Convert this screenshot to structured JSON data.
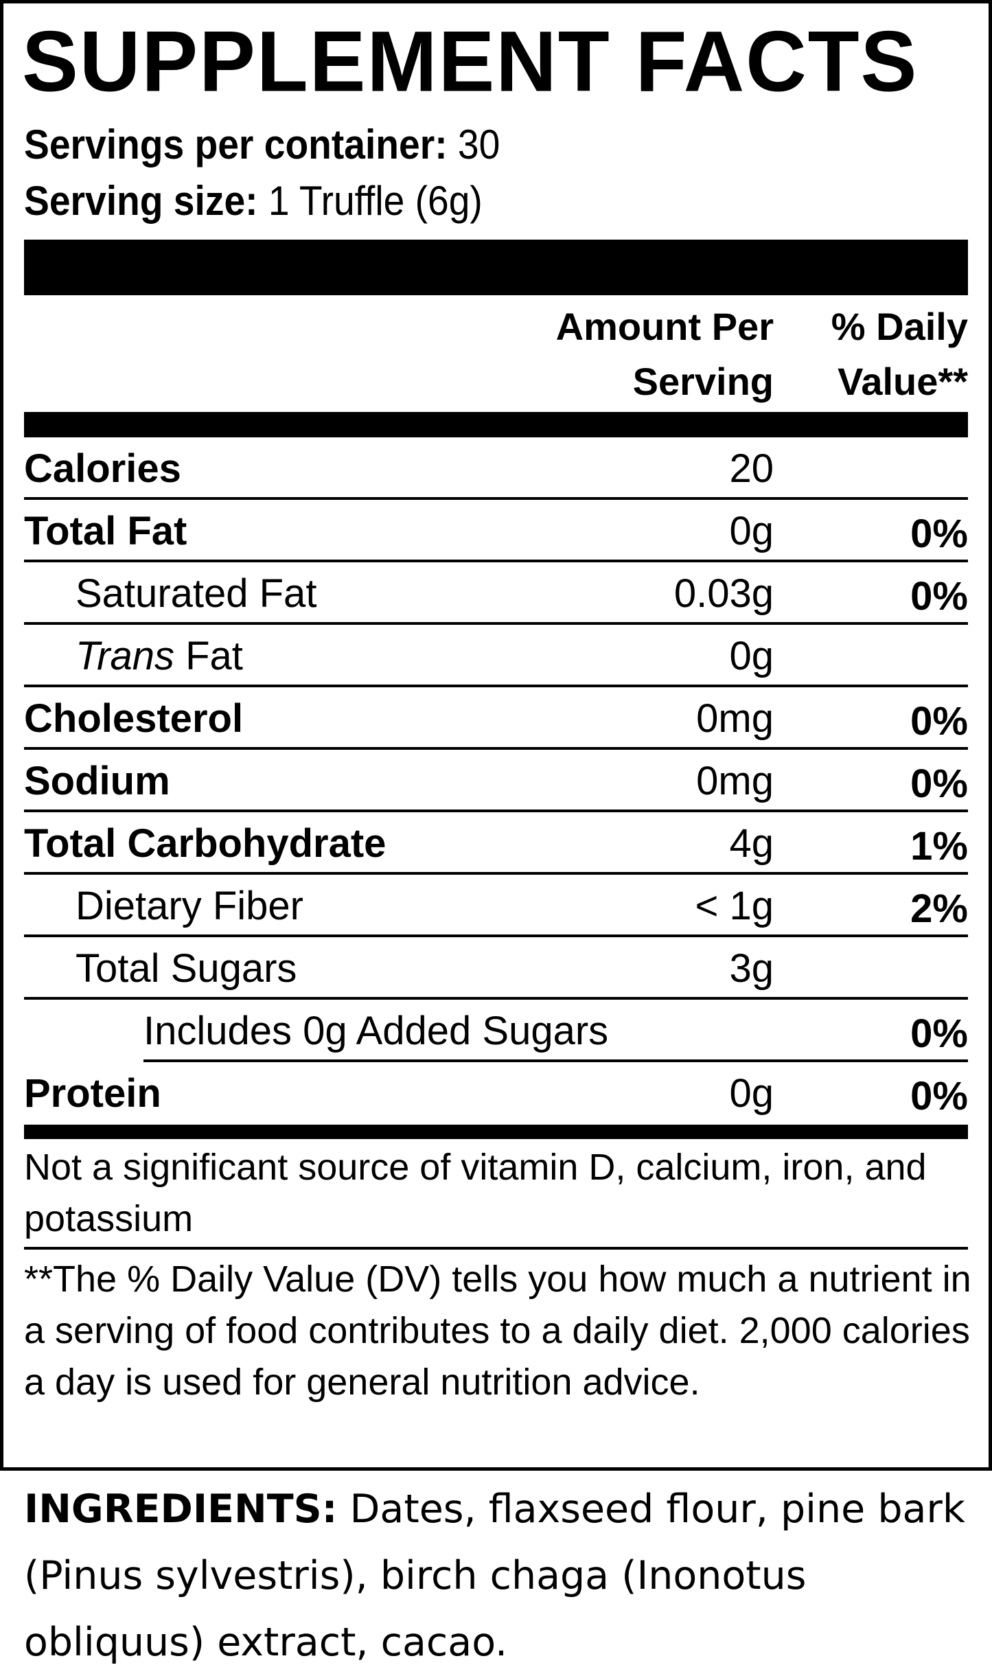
{
  "title": "SUPPLEMENT FACTS",
  "servings": {
    "per_container_label": "Servings per container:",
    "per_container_value": "30",
    "size_label": "Serving size:",
    "size_value": "1 Truffle (6g)"
  },
  "header": {
    "amount_line1": "Amount Per",
    "amount_line2": "Serving",
    "dv_line1": "% Daily",
    "dv_line2": "Value**"
  },
  "rows": [
    {
      "label": "Calories",
      "amount": "20",
      "dv": "",
      "bold": true,
      "indent": 0
    },
    {
      "label": "Total Fat",
      "amount": "0g",
      "dv": "0%",
      "bold": true,
      "indent": 0
    },
    {
      "label": "Saturated Fat",
      "amount": "0.03g",
      "dv": "0%",
      "bold": false,
      "indent": 1
    },
    {
      "label_italic": "Trans",
      "label": " Fat",
      "amount": "0g",
      "dv": "",
      "bold": false,
      "indent": 1
    },
    {
      "label": "Cholesterol",
      "amount": "0mg",
      "dv": "0%",
      "bold": true,
      "indent": 0
    },
    {
      "label": "Sodium",
      "amount": "0mg",
      "dv": "0%",
      "bold": true,
      "indent": 0
    },
    {
      "label": "Total Carbohydrate",
      "amount": "4g",
      "dv": "1%",
      "bold": true,
      "indent": 0
    },
    {
      "label": "Dietary Fiber",
      "amount": "< 1g",
      "dv": "2%",
      "bold": false,
      "indent": 1
    },
    {
      "label": "Total Sugars",
      "amount": "3g",
      "dv": "",
      "bold": false,
      "indent": 1
    },
    {
      "label": "Includes 0g Added Sugars",
      "amount": "",
      "dv": "0%",
      "bold": false,
      "indent": 2
    },
    {
      "label": "Protein",
      "amount": "0g",
      "dv": "0%",
      "bold": true,
      "indent": 0
    }
  ],
  "notes": {
    "not_significant": "Not a significant source of vitamin D, calcium, iron, and potassium",
    "daily_value": "**The % Daily Value (DV) tells you how much a nutrient in a serving of food contributes to a daily diet. 2,000 calories a day is used for general nutrition advice."
  },
  "ingredients": {
    "label": "INGREDIENTS:",
    "text": " Dates, flaxseed flour, pine bark (Pinus sylvestris), birch chaga (Inonotus obliquus) extract, cacao."
  }
}
